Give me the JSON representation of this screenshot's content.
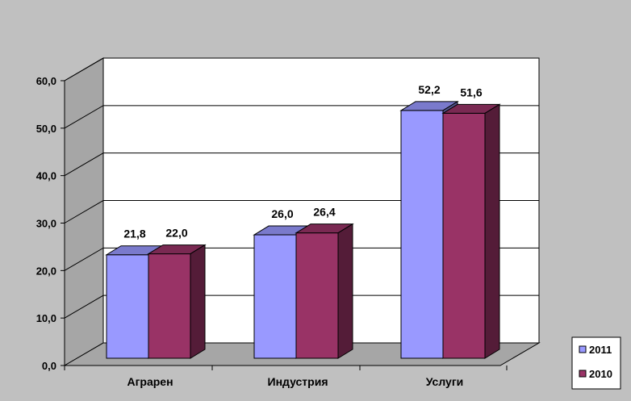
{
  "chart_data": {
    "type": "bar",
    "categories": [
      "Аграрен",
      "Индустрия",
      "Услуги"
    ],
    "series": [
      {
        "name": "2011",
        "values": [
          21.8,
          26.0,
          52.2
        ],
        "labels": [
          "21,8",
          "26,0",
          "52,2"
        ],
        "color": "#9999ff"
      },
      {
        "name": "2010",
        "values": [
          22.0,
          26.4,
          51.6
        ],
        "labels": [
          "22,0",
          "26,4",
          "51,6"
        ],
        "color": "#993366"
      }
    ],
    "title": "",
    "xlabel": "",
    "ylabel": "",
    "ylim": [
      0,
      60
    ],
    "yticks": [
      "0,0",
      "10,0",
      "20,0",
      "30,0",
      "40,0",
      "50,0",
      "60,0"
    ],
    "grid": true,
    "legend_position": "bottom-right",
    "three_d": true
  }
}
